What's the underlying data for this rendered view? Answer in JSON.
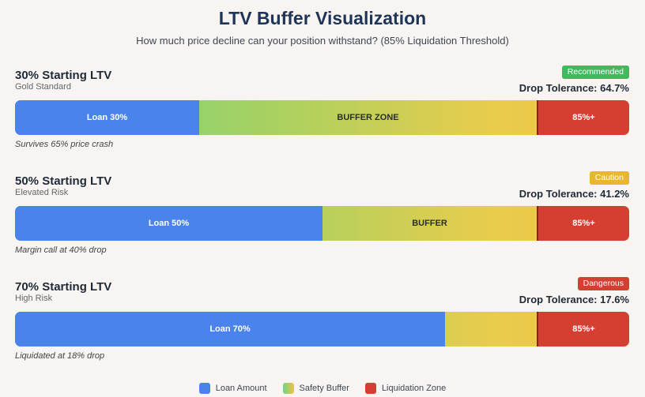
{
  "header": {
    "title": "LTV Buffer Visualization",
    "subtitle": "How much price decline can your position withstand? (85% Liquidation Threshold)"
  },
  "colors": {
    "loan": "#4a83ec",
    "liquidation": "#d43f32",
    "buffer_start": "#6fd488",
    "buffer_end": "#f0c242",
    "recommended": "#3fba5f",
    "caution": "#e7b730",
    "dangerous": "#d43f32"
  },
  "chart_data": {
    "type": "bar",
    "title": "LTV Buffer Visualization",
    "liquidation_threshold": 85,
    "scale_max": 100,
    "series": [
      {
        "name": "Loan Amount",
        "values": [
          30,
          50,
          70
        ]
      },
      {
        "name": "Safety Buffer",
        "values": [
          55,
          35,
          15
        ]
      },
      {
        "name": "Liquidation Zone",
        "values": [
          15,
          15,
          15
        ]
      }
    ],
    "categories": [
      "30% Starting LTV",
      "50% Starting LTV",
      "70% Starting LTV"
    ],
    "scenarios": [
      {
        "title": "30% Starting LTV",
        "subtitle": "Gold Standard",
        "badge": "Recommended",
        "badge_color": "#3fba5f",
        "tolerance": "Drop Tolerance: 64.7%",
        "loan": 30,
        "loan_label": "Loan 30%",
        "buffer_label": "BUFFER ZONE",
        "liq_label": "85%+",
        "note": "Survives 65% price crash"
      },
      {
        "title": "50% Starting LTV",
        "subtitle": "Elevated Risk",
        "badge": "Caution",
        "badge_color": "#e7b730",
        "tolerance": "Drop Tolerance: 41.2%",
        "loan": 50,
        "loan_label": "Loan 50%",
        "buffer_label": "BUFFER",
        "liq_label": "85%+",
        "note": "Margin call at 40% drop"
      },
      {
        "title": "70% Starting LTV",
        "subtitle": "High Risk",
        "badge": "Dangerous",
        "badge_color": "#d43f32",
        "tolerance": "Drop Tolerance: 17.6%",
        "loan": 70,
        "loan_label": "Loan 70%",
        "buffer_label": "",
        "liq_label": "85%+",
        "note": "Liquidated at 18% drop"
      }
    ],
    "legend": [
      {
        "label": "Loan Amount",
        "color": "#4a83ec"
      },
      {
        "label": "Safety Buffer",
        "color": "linear-gradient(90deg,#6fd488,#f0c242)"
      },
      {
        "label": "Liquidation Zone",
        "color": "#d43f32"
      }
    ]
  }
}
